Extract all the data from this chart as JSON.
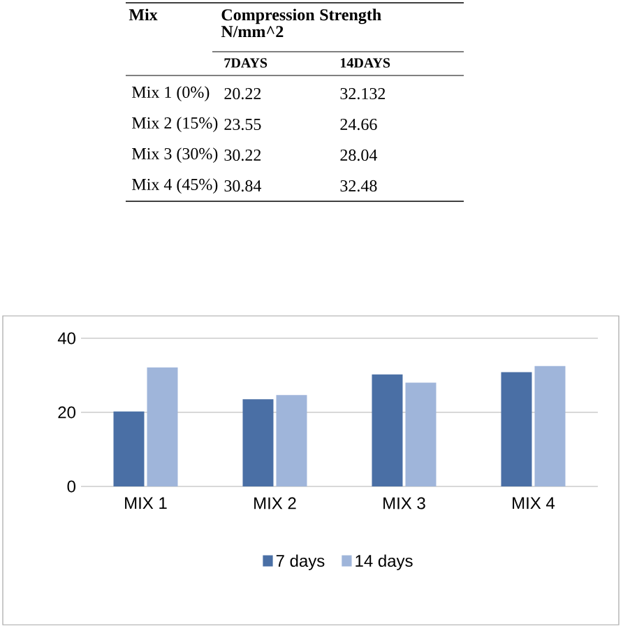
{
  "chart_data": {
    "type": "bar",
    "categories": [
      "MIX 1",
      "MIX 2",
      "MIX 3",
      "MIX 4"
    ],
    "series": [
      {
        "name": "7 days",
        "color": "#4a6fa5",
        "values": [
          20.22,
          23.55,
          30.22,
          30.84
        ]
      },
      {
        "name": "14 days",
        "color": "#9fb5da",
        "values": [
          32.132,
          24.66,
          28.04,
          32.48
        ]
      }
    ],
    "ylim": [
      0,
      40
    ],
    "yticks": [
      0,
      20,
      40
    ],
    "grid": "y",
    "legend": "bottom",
    "annotations": [
      "Mix",
      "Compression Strength N/mm^2",
      "7DAYS",
      "14DAYS",
      "Mix 1 (0%)",
      "20.22",
      "32.132",
      "Mix 2 (15%)",
      "23.55",
      "24.66",
      "Mix 3 (30%)",
      "30.22",
      "28.04",
      "Mix 4 (45%)",
      "30.84",
      "32.48"
    ]
  }
}
